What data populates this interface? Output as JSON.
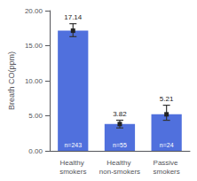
{
  "chart_data": {
    "type": "bar",
    "categories": [
      "Healthy smokers",
      "Healthy non-smokers",
      "Passive smokers"
    ],
    "values": [
      17.14,
      3.82,
      5.21
    ],
    "errors_upper": [
      1.0,
      0.55,
      1.3
    ],
    "errors_lower": [
      0.85,
      0.55,
      0.85
    ],
    "annotations": [
      "n=243",
      "n=55",
      "n=24"
    ],
    "ylabel": "Breath CO(ppm)",
    "ylim": [
      0,
      20
    ],
    "yticks": [
      {
        "value": 0,
        "label": "0.00"
      },
      {
        "value": 5,
        "label": "5.00"
      },
      {
        "value": 10,
        "label": "10.00"
      },
      {
        "value": 15,
        "label": "15.00"
      },
      {
        "value": 20,
        "label": "20.00"
      }
    ],
    "data_labels": true,
    "grid": false
  }
}
